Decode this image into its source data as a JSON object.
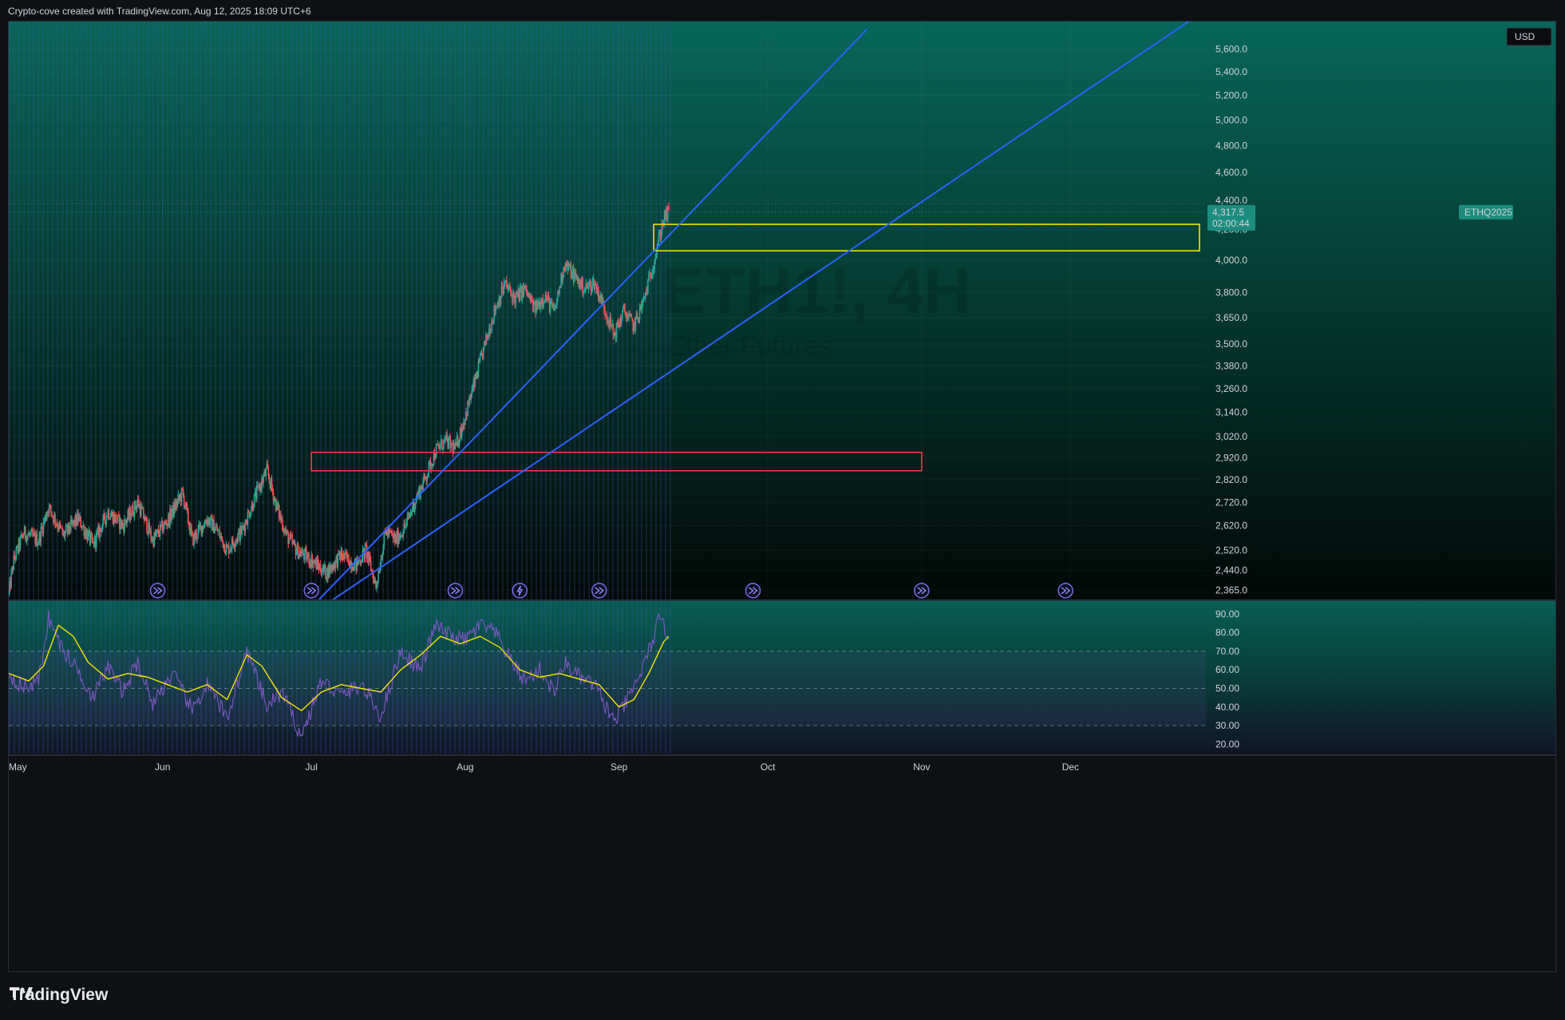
{
  "header": {
    "credit": "Crypto-cove created with TradingView.com, Aug 12, 2025 18:09 UTC+6"
  },
  "footer": {
    "brand": "TradingView",
    "logo_icon": "tradingview-logo-icon"
  },
  "chart_data": [
    {
      "type": "candlestick",
      "currency": "USD",
      "watermark": {
        "symbol": "ETH1!, 4H",
        "name": "Ether Futures"
      },
      "price_label": {
        "symbol": "ETHQ2025",
        "price": "4,317.5",
        "countdown": "02:00:44"
      },
      "yaxis": {
        "scale": "log",
        "range": [
          2330,
          5850
        ],
        "ticks": [
          5600,
          5400,
          5200,
          5000,
          4800,
          4600,
          4400,
          4200,
          4000,
          3800,
          3650,
          3500,
          3380,
          3260,
          3140,
          3020,
          2920,
          2820,
          2720,
          2620,
          2520,
          2440,
          2365
        ],
        "tick_labels": [
          "5,600.0",
          "5,400.0",
          "5,200.0",
          "5,000.0",
          "4,800.0",
          "4,600.0",
          "4,400.0",
          "4,200.0",
          "4,000.0",
          "3,800.0",
          "3,650.0",
          "3,500.0",
          "3,380.0",
          "3,260.0",
          "3,140.0",
          "3,020.0",
          "2,920.0",
          "2,820.0",
          "2,720.0",
          "2,620.0",
          "2,520.0",
          "2,440.0",
          "2,365.0"
        ]
      },
      "xaxis": {
        "range": [
          "2025-05-01",
          "2025-12-27"
        ],
        "tick_labels": [
          "May",
          "Jun",
          "Jul",
          "Aug",
          "Sep",
          "Oct",
          "Nov",
          "Dec"
        ],
        "tick_dates": [
          "2025-05-01",
          "2025-06-01",
          "2025-07-01",
          "2025-08-01",
          "2025-09-01",
          "2025-10-01",
          "2025-11-01",
          "2025-12-01"
        ]
      },
      "price_path": [
        [
          "2025-05-01",
          2350
        ],
        [
          "2025-05-02",
          2480
        ],
        [
          "2025-05-04",
          2590
        ],
        [
          "2025-05-07",
          2560
        ],
        [
          "2025-05-09",
          2700
        ],
        [
          "2025-05-12",
          2580
        ],
        [
          "2025-05-15",
          2650
        ],
        [
          "2025-05-18",
          2540
        ],
        [
          "2025-05-21",
          2680
        ],
        [
          "2025-05-24",
          2620
        ],
        [
          "2025-05-27",
          2720
        ],
        [
          "2025-05-30",
          2560
        ],
        [
          "2025-06-02",
          2640
        ],
        [
          "2025-06-05",
          2760
        ],
        [
          "2025-06-07",
          2560
        ],
        [
          "2025-06-10",
          2650
        ],
        [
          "2025-06-12",
          2600
        ],
        [
          "2025-06-14",
          2520
        ],
        [
          "2025-06-17",
          2600
        ],
        [
          "2025-06-20",
          2760
        ],
        [
          "2025-06-22",
          2860
        ],
        [
          "2025-06-24",
          2700
        ],
        [
          "2025-06-26",
          2580
        ],
        [
          "2025-06-28",
          2520
        ],
        [
          "2025-07-01",
          2480
        ],
        [
          "2025-07-04",
          2430
        ],
        [
          "2025-07-07",
          2500
        ],
        [
          "2025-07-10",
          2460
        ],
        [
          "2025-07-12",
          2520
        ],
        [
          "2025-07-14",
          2380
        ],
        [
          "2025-07-16",
          2600
        ],
        [
          "2025-07-18",
          2560
        ],
        [
          "2025-07-20",
          2620
        ],
        [
          "2025-07-22",
          2730
        ],
        [
          "2025-07-24",
          2830
        ],
        [
          "2025-07-26",
          2950
        ],
        [
          "2025-07-28",
          3000
        ],
        [
          "2025-07-30",
          2960
        ],
        [
          "2025-08-01",
          3120
        ],
        [
          "2025-08-03",
          3300
        ],
        [
          "2025-08-05",
          3500
        ],
        [
          "2025-08-07",
          3700
        ],
        [
          "2025-08-09",
          3850
        ],
        [
          "2025-08-11",
          3760
        ],
        [
          "2025-08-13",
          3820
        ],
        [
          "2025-08-15",
          3700
        ],
        [
          "2025-08-17",
          3780
        ],
        [
          "2025-08-19",
          3680
        ],
        [
          "2025-08-21",
          3980
        ],
        [
          "2025-08-23",
          3900
        ],
        [
          "2025-08-25",
          3820
        ],
        [
          "2025-08-27",
          3860
        ],
        [
          "2025-08-29",
          3710
        ],
        [
          "2025-08-31",
          3550
        ],
        [
          "2025-09-02",
          3690
        ],
        [
          "2025-09-04",
          3600
        ],
        [
          "2025-09-06",
          3750
        ],
        [
          "2025-09-08",
          3990
        ],
        [
          "2025-09-10",
          4270
        ],
        [
          "2025-09-11",
          4317.5
        ]
      ],
      "zones": [
        {
          "name": "resistance-zone",
          "color": "#f5e500",
          "x_start": "2025-09-08",
          "x_end": "2025-12-27",
          "y_top": 4235,
          "y_bottom": 4060
        },
        {
          "name": "support-zone",
          "color": "#f23645",
          "x_start": "2025-07-01",
          "x_end": "2025-11-01",
          "y_top": 2945,
          "y_bottom": 2860
        }
      ],
      "trendlines": [
        {
          "name": "steep-trendline",
          "color": "#2962ff",
          "from": [
            "2025-07-01",
            2300
          ],
          "to": [
            "2025-10-21",
            5780
          ]
        },
        {
          "name": "shallow-trendline",
          "color": "#2962ff",
          "from": [
            "2025-07-03",
            2300
          ],
          "to": [
            "2025-12-27",
            5920
          ]
        }
      ],
      "event_markers": [
        {
          "date": "2025-05-31",
          "icon": "fast-forward-icon"
        },
        {
          "date": "2025-07-01",
          "icon": "fast-forward-icon"
        },
        {
          "date": "2025-07-30",
          "icon": "fast-forward-icon"
        },
        {
          "date": "2025-08-12",
          "icon": "lightning-icon"
        },
        {
          "date": "2025-08-28",
          "icon": "fast-forward-icon"
        },
        {
          "date": "2025-09-28",
          "icon": "fast-forward-icon"
        },
        {
          "date": "2025-11-01",
          "icon": "fast-forward-icon"
        },
        {
          "date": "2025-11-30",
          "icon": "fast-forward-icon"
        }
      ],
      "colors": {
        "up": "#26a69a",
        "down": "#ef5350"
      }
    },
    {
      "type": "line",
      "indicator": "RSI",
      "yaxis": {
        "range": [
          15,
          97
        ],
        "ticks": [
          90,
          80,
          70,
          60,
          50,
          40,
          30,
          20
        ],
        "tick_labels": [
          "90.00",
          "80.00",
          "70.00",
          "60.00",
          "50.00",
          "40.00",
          "30.00",
          "20.00"
        ],
        "bands": [
          70,
          50,
          30
        ]
      },
      "series": [
        {
          "color": "#7e57c2",
          "points": [
            [
              "2025-05-01",
              58
            ],
            [
              "2025-05-04",
              50
            ],
            [
              "2025-05-07",
              54
            ],
            [
              "2025-05-09",
              88
            ],
            [
              "2025-05-12",
              70
            ],
            [
              "2025-05-15",
              60
            ],
            [
              "2025-05-18",
              45
            ],
            [
              "2025-05-21",
              62
            ],
            [
              "2025-05-24",
              48
            ],
            [
              "2025-05-27",
              64
            ],
            [
              "2025-05-30",
              42
            ],
            [
              "2025-06-03",
              58
            ],
            [
              "2025-06-07",
              38
            ],
            [
              "2025-06-10",
              52
            ],
            [
              "2025-06-14",
              34
            ],
            [
              "2025-06-18",
              70
            ],
            [
              "2025-06-22",
              40
            ],
            [
              "2025-06-25",
              48
            ],
            [
              "2025-06-29",
              24
            ],
            [
              "2025-07-03",
              54
            ],
            [
              "2025-07-07",
              46
            ],
            [
              "2025-07-11",
              52
            ],
            [
              "2025-07-15",
              35
            ],
            [
              "2025-07-19",
              70
            ],
            [
              "2025-07-23",
              60
            ],
            [
              "2025-07-26",
              84
            ],
            [
              "2025-07-29",
              78
            ],
            [
              "2025-08-01",
              76
            ],
            [
              "2025-08-04",
              84
            ],
            [
              "2025-08-07",
              80
            ],
            [
              "2025-08-10",
              66
            ],
            [
              "2025-08-13",
              54
            ],
            [
              "2025-08-16",
              60
            ],
            [
              "2025-08-19",
              48
            ],
            [
              "2025-08-21",
              64
            ],
            [
              "2025-08-24",
              56
            ],
            [
              "2025-08-27",
              52
            ],
            [
              "2025-08-31",
              32
            ],
            [
              "2025-09-03",
              45
            ],
            [
              "2025-09-06",
              62
            ],
            [
              "2025-09-09",
              86
            ],
            [
              "2025-09-11",
              80
            ]
          ]
        },
        {
          "color": "#f5e500",
          "points": [
            [
              "2025-05-01",
              58
            ],
            [
              "2025-05-05",
              54
            ],
            [
              "2025-05-08",
              62
            ],
            [
              "2025-05-11",
              84
            ],
            [
              "2025-05-14",
              78
            ],
            [
              "2025-05-17",
              64
            ],
            [
              "2025-05-21",
              55
            ],
            [
              "2025-05-25",
              58
            ],
            [
              "2025-05-29",
              56
            ],
            [
              "2025-06-02",
              52
            ],
            [
              "2025-06-06",
              48
            ],
            [
              "2025-06-10",
              52
            ],
            [
              "2025-06-14",
              44
            ],
            [
              "2025-06-18",
              68
            ],
            [
              "2025-06-21",
              62
            ],
            [
              "2025-06-25",
              45
            ],
            [
              "2025-06-29",
              38
            ],
            [
              "2025-07-03",
              48
            ],
            [
              "2025-07-07",
              52
            ],
            [
              "2025-07-11",
              50
            ],
            [
              "2025-07-15",
              48
            ],
            [
              "2025-07-19",
              60
            ],
            [
              "2025-07-23",
              68
            ],
            [
              "2025-07-27",
              78
            ],
            [
              "2025-07-31",
              74
            ],
            [
              "2025-08-04",
              78
            ],
            [
              "2025-08-08",
              72
            ],
            [
              "2025-08-12",
              60
            ],
            [
              "2025-08-16",
              56
            ],
            [
              "2025-08-20",
              58
            ],
            [
              "2025-08-24",
              55
            ],
            [
              "2025-08-28",
              52
            ],
            [
              "2025-09-01",
              40
            ],
            [
              "2025-09-04",
              44
            ],
            [
              "2025-09-07",
              58
            ],
            [
              "2025-09-10",
              75
            ],
            [
              "2025-09-11",
              78
            ]
          ]
        }
      ]
    }
  ]
}
